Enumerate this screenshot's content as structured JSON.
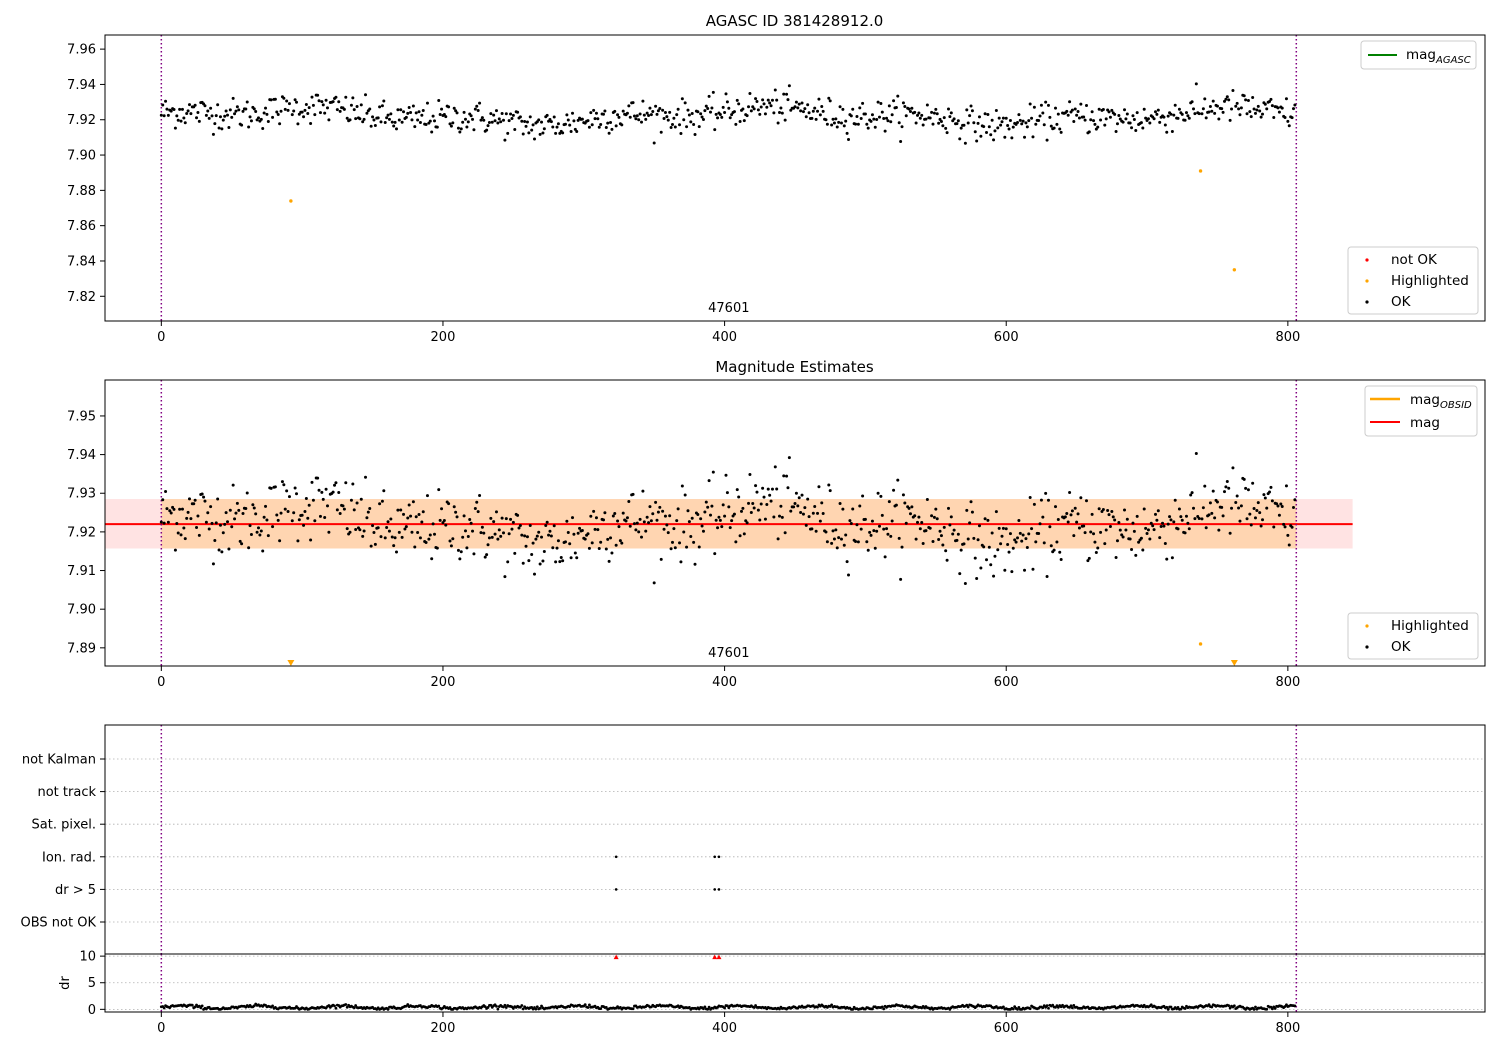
{
  "chart_data": [
    {
      "type": "scatter",
      "title": "AGASC ID 381428912.0",
      "xlim": [
        -40,
        940
      ],
      "ylim": [
        7.806,
        7.968
      ],
      "x_ticks": [
        0,
        200,
        400,
        600,
        800
      ],
      "y_ticks": [
        7.82,
        7.84,
        7.86,
        7.88,
        7.9,
        7.92,
        7.94,
        7.96
      ],
      "y_tick_labels": [
        "7.82",
        "7.84",
        "7.86",
        "7.88",
        "7.90",
        "7.92",
        "7.94",
        "7.96"
      ],
      "obsid_boundaries": [
        0,
        806
      ],
      "obsid_label": "47601",
      "obsid_label_x": 403,
      "n_points": 806,
      "baseline": 7.922,
      "scatter_sigma": 0.0045,
      "highlighted_points": [
        {
          "x": 92,
          "y": 7.874
        },
        {
          "x": 738,
          "y": 7.891
        },
        {
          "x": 762,
          "y": 7.835
        }
      ],
      "legend_top": [
        {
          "label": "mag",
          "sub": "AGASC",
          "color": "#008000"
        }
      ],
      "legend_bottom": [
        {
          "label": "not OK",
          "color": "#ff0000"
        },
        {
          "label": "Highlighted",
          "color": "#ffa500"
        },
        {
          "label": "OK",
          "color": "#000000"
        }
      ]
    },
    {
      "type": "scatter",
      "title": "Magnitude Estimates",
      "xlim": [
        -40,
        940
      ],
      "ylim": [
        7.8853,
        7.9593
      ],
      "x_ticks": [
        0,
        200,
        400,
        600,
        800
      ],
      "y_ticks": [
        7.89,
        7.9,
        7.91,
        7.92,
        7.93,
        7.94,
        7.95
      ],
      "y_tick_labels": [
        "7.89",
        "7.90",
        "7.91",
        "7.92",
        "7.93",
        "7.94",
        "7.95"
      ],
      "obsid_boundaries": [
        0,
        806
      ],
      "obsid_label": "47601",
      "obsid_label_x": 403,
      "mag": 7.922,
      "band": [
        7.9157,
        7.9285
      ],
      "band_x": [
        -40,
        846
      ],
      "mag_line_x": [
        -40,
        846
      ],
      "obsid_band_x": [
        0,
        806
      ],
      "highlighted_points": [
        {
          "x": 738,
          "y": 7.891
        }
      ],
      "clipped_markers": [
        {
          "x": 92
        },
        {
          "x": 762
        }
      ],
      "legend_top": [
        {
          "label": "mag",
          "sub": "OBSID",
          "color": "#ffa500"
        },
        {
          "label": "mag",
          "sub": "",
          "color": "#ff0000"
        }
      ],
      "legend_bottom": [
        {
          "label": "Highlighted",
          "color": "#ffa500"
        },
        {
          "label": "OK",
          "color": "#000000"
        }
      ]
    },
    {
      "type": "scatter",
      "title": "",
      "xlim": [
        -40,
        940
      ],
      "categories": [
        "not Kalman",
        "not track",
        "Sat. pixel.",
        "Ion. rad.",
        "dr > 5",
        "OBS not OK"
      ],
      "obsid_boundaries": [
        0,
        806
      ],
      "flag_points": [
        {
          "category": "Ion. rad.",
          "x": [
            323,
            393,
            396
          ]
        },
        {
          "category": "dr > 5",
          "x": [
            323,
            393,
            396
          ]
        }
      ]
    },
    {
      "type": "scatter",
      "title": "",
      "ylabel": "dr",
      "xlim": [
        -40,
        940
      ],
      "ylim": [
        -0.5,
        10.4
      ],
      "x_ticks": [
        0,
        200,
        400,
        600,
        800
      ],
      "y_ticks": [
        0,
        5,
        10
      ],
      "y_tick_labels": [
        "0",
        "5",
        "10"
      ],
      "obsid_boundaries": [
        0,
        806
      ],
      "clipped_markers": [
        {
          "x": 323
        },
        {
          "x": 393
        },
        {
          "x": 396
        }
      ],
      "dr_baseline": 0.4
    }
  ]
}
